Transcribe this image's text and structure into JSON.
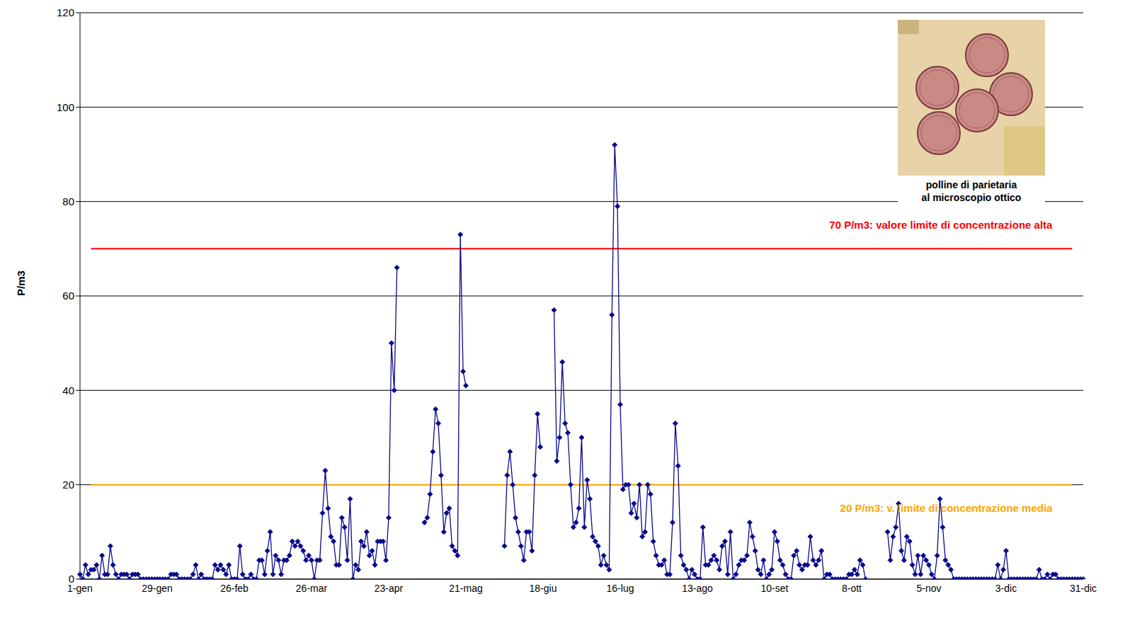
{
  "chart_data": {
    "type": "line",
    "y_label": "P/m3",
    "color": "#0a0a8c",
    "marker": "diamond",
    "grid": true,
    "ylim": [
      0,
      120
    ],
    "yticks": [
      0,
      20,
      40,
      60,
      80,
      100,
      120
    ],
    "categories": [
      "1-gen",
      null,
      null,
      null,
      null,
      null,
      null,
      null,
      null,
      null,
      null,
      null,
      null,
      null,
      null,
      null,
      null,
      null,
      null,
      null,
      null,
      null,
      null,
      null,
      null,
      null,
      null,
      null,
      "29-gen",
      null,
      null,
      null,
      null,
      null,
      null,
      null,
      null,
      null,
      null,
      null,
      null,
      null,
      null,
      null,
      null,
      null,
      null,
      null,
      null,
      null,
      null,
      null,
      null,
      null,
      null,
      null,
      "26-feb",
      null,
      null,
      null,
      null,
      null,
      null,
      null,
      null,
      null,
      null,
      null,
      null,
      null,
      null,
      null,
      null,
      null,
      null,
      null,
      null,
      null,
      null,
      null,
      null,
      null,
      null,
      null,
      "26-mar",
      null,
      null,
      null,
      null,
      null,
      null,
      null,
      null,
      null,
      null,
      null,
      null,
      null,
      null,
      null,
      null,
      null,
      null,
      null,
      null,
      null,
      null,
      null,
      null,
      null,
      null,
      null,
      "23-apr",
      null,
      null,
      null,
      null,
      null,
      null,
      null,
      null,
      null,
      null,
      null,
      null,
      null,
      null,
      null,
      null,
      null,
      null,
      null,
      null,
      null,
      null,
      null,
      null,
      null,
      null,
      null,
      "21-mag",
      null,
      null,
      null,
      null,
      null,
      null,
      null,
      null,
      null,
      null,
      null,
      null,
      null,
      null,
      null,
      null,
      null,
      null,
      null,
      null,
      null,
      null,
      null,
      null,
      null,
      null,
      null,
      "18-giu",
      null,
      null,
      null,
      null,
      null,
      null,
      null,
      null,
      null,
      null,
      null,
      null,
      null,
      null,
      null,
      null,
      null,
      null,
      null,
      null,
      null,
      null,
      null,
      null,
      null,
      null,
      null,
      "16-lug",
      null,
      null,
      null,
      null,
      null,
      null,
      null,
      null,
      null,
      null,
      null,
      null,
      null,
      null,
      null,
      null,
      null,
      null,
      null,
      null,
      null,
      null,
      null,
      null,
      null,
      null,
      null,
      "13-ago",
      null,
      null,
      null,
      null,
      null,
      null,
      null,
      null,
      null,
      null,
      null,
      null,
      null,
      null,
      null,
      null,
      null,
      null,
      null,
      null,
      null,
      null,
      null,
      null,
      null,
      null,
      null,
      "10-set",
      null,
      null,
      null,
      null,
      null,
      null,
      null,
      null,
      null,
      null,
      null,
      null,
      null,
      null,
      null,
      null,
      null,
      null,
      null,
      null,
      null,
      null,
      null,
      null,
      null,
      null,
      null,
      "8-ott",
      null,
      null,
      null,
      null,
      null,
      null,
      null,
      null,
      null,
      null,
      null,
      null,
      null,
      null,
      null,
      null,
      null,
      null,
      null,
      null,
      null,
      null,
      null,
      null,
      null,
      null,
      null,
      "5-nov",
      null,
      null,
      null,
      null,
      null,
      null,
      null,
      null,
      null,
      null,
      null,
      null,
      null,
      null,
      null,
      null,
      null,
      null,
      null,
      null,
      null,
      null,
      null,
      null,
      null,
      null,
      null,
      "3-dic",
      null,
      null,
      null,
      null,
      null,
      null,
      null,
      null,
      null,
      null,
      null,
      null,
      null,
      null,
      null,
      null,
      null,
      null,
      null,
      null,
      null,
      null,
      null,
      null,
      null,
      null,
      null,
      "31-dic"
    ],
    "values": [
      1,
      0,
      3,
      1,
      2,
      2,
      3,
      0,
      5,
      1,
      1,
      7,
      3,
      1,
      0,
      1,
      1,
      1,
      0,
      1,
      1,
      1,
      0,
      0,
      0,
      0,
      0,
      0,
      0,
      0,
      0,
      0,
      0,
      1,
      1,
      1,
      0,
      0,
      0,
      0,
      0,
      1,
      3,
      0,
      1,
      0,
      0,
      0,
      0,
      3,
      2,
      3,
      2,
      1,
      3,
      0,
      0,
      0,
      7,
      1,
      0,
      0,
      1,
      0,
      0,
      4,
      4,
      1,
      6,
      10,
      1,
      5,
      4,
      1,
      4,
      4,
      5,
      8,
      7,
      8,
      7,
      6,
      4,
      5,
      4,
      0,
      4,
      4,
      14,
      23,
      15,
      9,
      8,
      3,
      3,
      13,
      11,
      4,
      17,
      0,
      3,
      2,
      8,
      7,
      10,
      5,
      6,
      3,
      8,
      8,
      8,
      4,
      13,
      50,
      40,
      66,
      null,
      null,
      null,
      null,
      null,
      null,
      null,
      null,
      null,
      12,
      13,
      18,
      27,
      36,
      33,
      22,
      10,
      14,
      15,
      7,
      6,
      5,
      73,
      44,
      41,
      null,
      null,
      null,
      null,
      null,
      null,
      null,
      null,
      null,
      null,
      null,
      null,
      null,
      7,
      22,
      27,
      20,
      13,
      10,
      7,
      4,
      10,
      10,
      6,
      22,
      35,
      28,
      null,
      null,
      null,
      null,
      57,
      25,
      30,
      46,
      33,
      31,
      20,
      11,
      12,
      15,
      30,
      11,
      21,
      17,
      9,
      8,
      7,
      3,
      5,
      3,
      2,
      56,
      92,
      79,
      37,
      19,
      20,
      20,
      14,
      16,
      13,
      20,
      9,
      10,
      20,
      18,
      8,
      5,
      3,
      3,
      4,
      1,
      1,
      12,
      33,
      24,
      5,
      3,
      2,
      0,
      2,
      1,
      0,
      0,
      11,
      3,
      3,
      4,
      5,
      4,
      2,
      7,
      8,
      1,
      10,
      0,
      1,
      3,
      4,
      4,
      5,
      12,
      9,
      6,
      2,
      1,
      4,
      0,
      1,
      2,
      10,
      8,
      4,
      3,
      1,
      0,
      0,
      5,
      6,
      3,
      2,
      3,
      3,
      9,
      4,
      3,
      4,
      6,
      0,
      1,
      1,
      0,
      0,
      0,
      0,
      0,
      0,
      1,
      1,
      2,
      1,
      4,
      3,
      0,
      null,
      null,
      null,
      null,
      null,
      null,
      null,
      10,
      4,
      9,
      11,
      16,
      6,
      4,
      9,
      8,
      3,
      1,
      5,
      1,
      5,
      4,
      3,
      1,
      0,
      5,
      17,
      11,
      4,
      3,
      2,
      0,
      0,
      0,
      0,
      0,
      0,
      0,
      0,
      0,
      0,
      0,
      0,
      0,
      0,
      0,
      0,
      3,
      0,
      2,
      6,
      0,
      0,
      0,
      0,
      0,
      0,
      0,
      0,
      0,
      0,
      0,
      2,
      0,
      0,
      1,
      0,
      1,
      1,
      0,
      0,
      0,
      0,
      0,
      0,
      0,
      0,
      0,
      0
    ],
    "annotations": [
      {
        "text": "70 P/m3: valore limite di concentrazione alta",
        "value": 70,
        "color": "#ff0000"
      },
      {
        "text": "20 P/m3: v. limite di concentrazione media",
        "value": 20,
        "color": "#ffa500"
      }
    ],
    "inset_caption": "polline di parietaria al microscopio ottico"
  }
}
